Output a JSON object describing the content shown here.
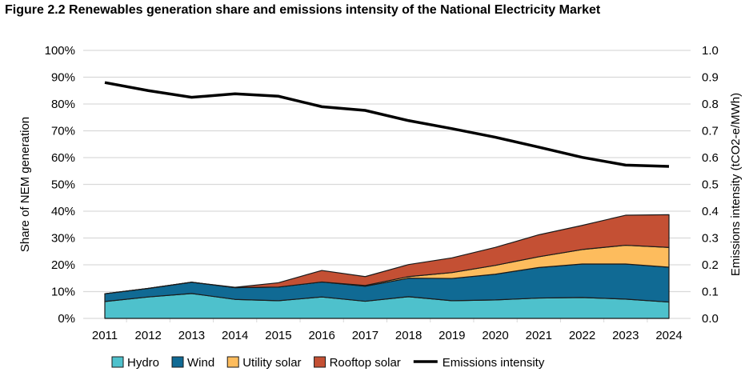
{
  "chart_data": {
    "type": "area",
    "title": "Figure 2.2 Renewables generation share and emissions intensity of the National Electricity Market",
    "categories": [
      "2011",
      "2012",
      "2013",
      "2014",
      "2015",
      "2016",
      "2017",
      "2018",
      "2019",
      "2020",
      "2021",
      "2022",
      "2023",
      "2024"
    ],
    "ylabel": "Share of NEM generation",
    "y2label": "Emissions intensity (tCO2-e/MWh)",
    "ylim": [
      0,
      100
    ],
    "y2lim": [
      0,
      1.0
    ],
    "yticks": [
      "0%",
      "10%",
      "20%",
      "30%",
      "40%",
      "50%",
      "60%",
      "70%",
      "80%",
      "90%",
      "100%"
    ],
    "y2ticks": [
      "0.0",
      "0.1",
      "0.2",
      "0.3",
      "0.4",
      "0.5",
      "0.6",
      "0.7",
      "0.8",
      "0.9",
      "1.0"
    ],
    "grid": true,
    "legend": "bottom",
    "stacked_series": [
      {
        "name": "Hydro",
        "color": "#4EC1CC",
        "values": [
          6.3,
          8.0,
          9.3,
          7.1,
          6.6,
          8.0,
          6.4,
          8.1,
          6.6,
          6.9,
          7.6,
          7.8,
          7.2,
          6.1
        ]
      },
      {
        "name": "Wind",
        "color": "#106A94",
        "values": [
          2.9,
          3.2,
          4.2,
          4.4,
          5.1,
          5.6,
          5.6,
          6.9,
          8.3,
          9.6,
          11.4,
          12.5,
          13.1,
          13.0
        ]
      },
      {
        "name": "Utility solar",
        "color": "#FDBC5D",
        "values": [
          0,
          0,
          0,
          0,
          0,
          0,
          0.3,
          0.6,
          2.2,
          3.3,
          4.0,
          5.4,
          7.0,
          7.4
        ]
      },
      {
        "name": "Rooftop solar",
        "color": "#C45034",
        "values": [
          0,
          0,
          0,
          0.1,
          1.6,
          4.3,
          3.3,
          4.5,
          5.5,
          6.7,
          8.2,
          9.0,
          11.2,
          12.2
        ]
      }
    ],
    "line_series": {
      "name": "Emissions intensity",
      "color": "#000000",
      "axis": "right",
      "values": [
        0.88,
        0.85,
        0.825,
        0.838,
        0.829,
        0.79,
        0.776,
        0.738,
        0.708,
        0.676,
        0.639,
        0.601,
        0.572,
        0.567
      ]
    }
  }
}
